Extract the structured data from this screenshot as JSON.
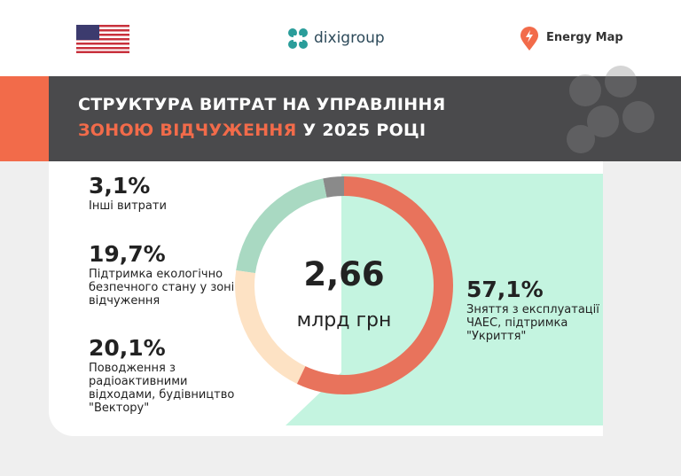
{
  "header": {
    "logo_center": "dixigroup",
    "logo_right": "Energy Map"
  },
  "chart_data": {
    "type": "donut",
    "title": [
      "СТРУКТУРА ВИТРАТ НА УПРАВЛІННЯ",
      "ЗОНОЮ",
      "ВІДЧУЖЕННЯ",
      "У 2025 РОЦІ"
    ],
    "title_colors": [
      "#ffffff",
      "#f26b4a",
      "#f26b4a",
      "#ffffff"
    ],
    "center_value": "2,66",
    "center_unit": "млрд грн",
    "categories": [
      "Зняття з експлуатації ЧАЕС, підтримка \"Укриття\"",
      "Поводження з радіоактивними відходами, будівництво \"Вектору\"",
      "Підтримка екологічно безпечного стану у зоні відчуження",
      "Інші витрати"
    ],
    "values": [
      57.1,
      20.1,
      19.7,
      3.1
    ],
    "value_labels": [
      "57,1%",
      "20,1%",
      "19,7%",
      "3,1%"
    ],
    "colors": [
      "#e8735c",
      "#fde2c4",
      "#a9d9c2",
      "#8a8a8a"
    ]
  }
}
